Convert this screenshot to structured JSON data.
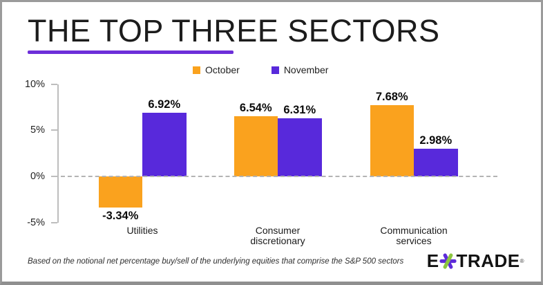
{
  "chart_data": {
    "type": "bar",
    "title": "THE TOP THREE SECTORS",
    "categories": [
      "Utilities",
      "Consumer discretionary",
      "Communication services"
    ],
    "category_lines": [
      [
        "Utilities"
      ],
      [
        "Consumer",
        "discretionary"
      ],
      [
        "Communication",
        "services"
      ]
    ],
    "series": [
      {
        "name": "October",
        "color": "#FAA21E",
        "values": [
          -3.34,
          6.54,
          7.68
        ],
        "labels": [
          "-3.34%",
          "6.54%",
          "7.68%"
        ]
      },
      {
        "name": "November",
        "color": "#5829DB",
        "values": [
          6.92,
          6.31,
          2.98
        ],
        "labels": [
          "6.92%",
          "6.31%",
          "2.98%"
        ]
      }
    ],
    "xlabel": "",
    "ylabel": "",
    "ylim": [
      -5,
      10
    ],
    "yticks": [
      {
        "label": "10%",
        "value": 10
      },
      {
        "label": "5%",
        "value": 5
      },
      {
        "label": "0%",
        "value": 0
      },
      {
        "label": "-5%",
        "value": -5
      }
    ],
    "grid": false,
    "zero_line_style": "dashed",
    "legend_position": "top-center"
  },
  "header": {
    "underline_color": "#6D2FD9"
  },
  "footnote": "Based on the notional net percentage buy/sell of the underlying equities that comprise the S&P 500 sectors",
  "logo": {
    "prefix": "E",
    "suffix": "TRADE",
    "registered": "®",
    "asterisk_purple": "#5E2BD9",
    "asterisk_green": "#8CC63F"
  }
}
